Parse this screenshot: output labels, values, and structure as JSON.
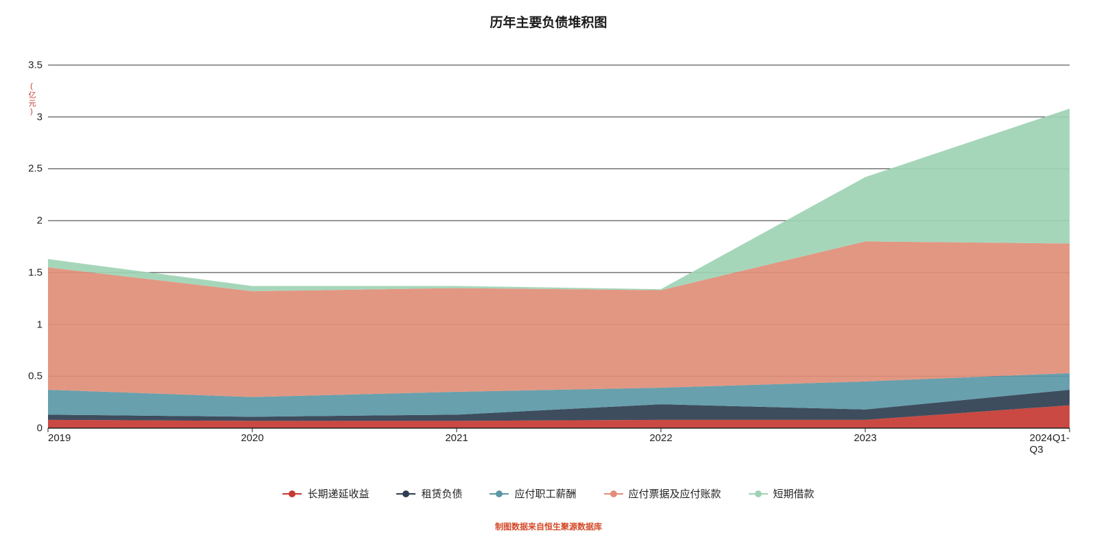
{
  "chart": {
    "type": "stacked-area",
    "title": "历年主要负债堆积图",
    "title_fontsize": 19,
    "title_color": "#1a1a1a",
    "background_color": "#ffffff",
    "yaxis_unit_label": "(亿元)",
    "yaxis_unit_color": "#c0392b",
    "ylim": [
      0,
      3.5
    ],
    "ytick_step": 0.5,
    "yticks": [
      "0",
      "0.5",
      "1",
      "1.5",
      "2",
      "2.5",
      "3",
      "3.5"
    ],
    "categories": [
      "2019",
      "2020",
      "2021",
      "2022",
      "2023",
      "2024Q1-Q3"
    ],
    "gridline_color": "#333333",
    "gridline_width": 1,
    "axis_line_color": "#222222",
    "tick_font_size": 15,
    "tick_color": "#222222",
    "series": [
      {
        "name": "长期递延收益",
        "color": "#c53a32",
        "values": [
          0.08,
          0.07,
          0.07,
          0.08,
          0.08,
          0.22
        ]
      },
      {
        "name": "租赁负债",
        "color": "#2d3e50",
        "values": [
          0.05,
          0.04,
          0.06,
          0.15,
          0.1,
          0.15
        ]
      },
      {
        "name": "应付职工薪酬",
        "color": "#5b98a6",
        "values": [
          0.24,
          0.19,
          0.22,
          0.16,
          0.27,
          0.16
        ]
      },
      {
        "name": "应付票据及应付账款",
        "color": "#e08e78",
        "values": [
          1.18,
          1.02,
          1.0,
          0.94,
          1.35,
          1.25
        ]
      },
      {
        "name": "短期借款",
        "color": "#9ed2b4",
        "values": [
          0.08,
          0.05,
          0.02,
          0.01,
          0.62,
          1.3
        ]
      }
    ],
    "legend": {
      "position": "bottom-center",
      "marker_style": "line-with-dot",
      "font_size": 15
    },
    "source_note": "制图数据来自恒生聚源数据库",
    "source_note_color": "#d44a2a",
    "source_note_fontsize": 12
  }
}
